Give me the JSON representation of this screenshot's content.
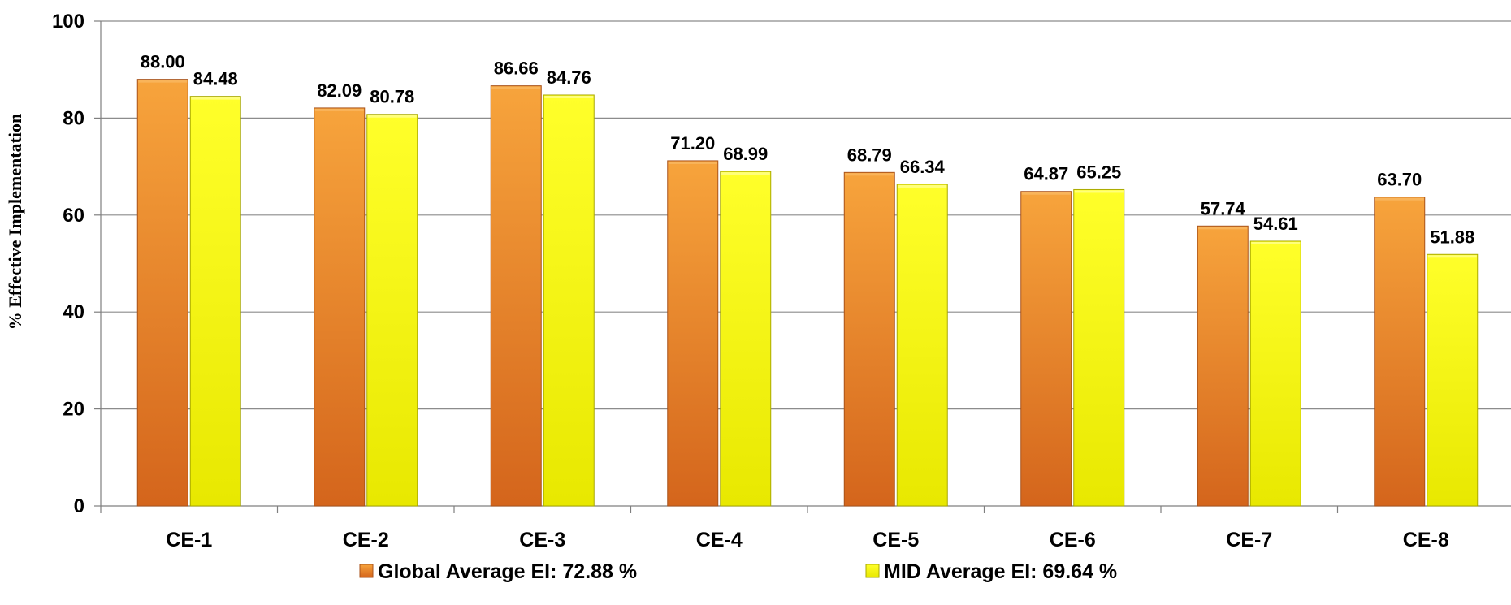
{
  "chart_data": {
    "type": "bar",
    "categories": [
      "CE-1",
      "CE-2",
      "CE-3",
      "CE-4",
      "CE-5",
      "CE-6",
      "CE-7",
      "CE-8"
    ],
    "series": [
      {
        "name": "Global Average EI:  72.88 %",
        "values": [
          88.0,
          82.09,
          86.66,
          71.2,
          68.79,
          64.87,
          57.74,
          63.7
        ],
        "labels": [
          "88.00",
          "82.09",
          "86.66",
          "71.20",
          "68.79",
          "64.87",
          "57.74",
          "63.70"
        ],
        "color": "#f28c28"
      },
      {
        "name": "MID Average EI:  69.64 %",
        "values": [
          84.48,
          80.78,
          84.76,
          68.99,
          66.34,
          65.25,
          54.61,
          51.88
        ],
        "labels": [
          "84.48",
          "80.78",
          "84.76",
          "68.99",
          "66.34",
          "65.25",
          "54.61",
          "51.88"
        ],
        "color": "#f5f500"
      }
    ],
    "ylabel": "% Effective Implementation",
    "ylim": [
      0,
      100
    ],
    "yticks": [
      "0",
      "20",
      "40",
      "60",
      "80",
      "100"
    ],
    "grid": true,
    "legend_position": "bottom"
  }
}
